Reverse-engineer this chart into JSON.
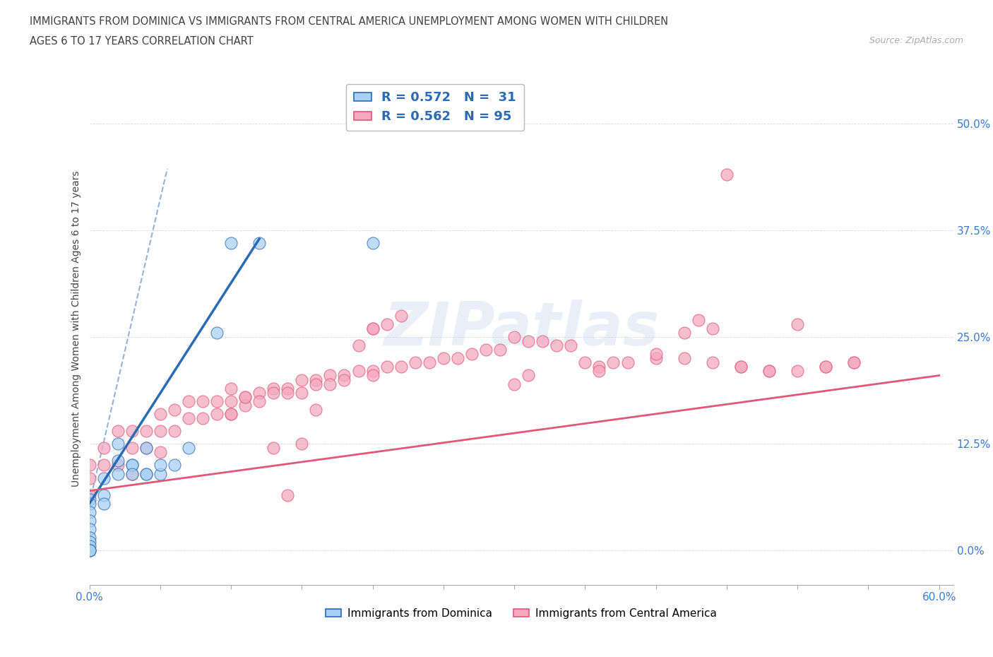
{
  "title_line1": "IMMIGRANTS FROM DOMINICA VS IMMIGRANTS FROM CENTRAL AMERICA UNEMPLOYMENT AMONG WOMEN WITH CHILDREN",
  "title_line2": "AGES 6 TO 17 YEARS CORRELATION CHART",
  "source": "Source: ZipAtlas.com",
  "ylabel": "Unemployment Among Women with Children Ages 6 to 17 years",
  "xlim": [
    0.0,
    0.61
  ],
  "ylim": [
    -0.04,
    0.56
  ],
  "xticks": [
    0.0,
    0.05,
    0.1,
    0.15,
    0.2,
    0.25,
    0.3,
    0.35,
    0.4,
    0.45,
    0.5,
    0.55,
    0.6
  ],
  "xtick_labels_show": [
    "0.0%",
    "",
    "",
    "",
    "",
    "",
    "",
    "",
    "",
    "",
    "",
    "",
    "60.0%"
  ],
  "ytick_positions": [
    0.0,
    0.125,
    0.25,
    0.375,
    0.5
  ],
  "ytick_labels": [
    "0.0%",
    "12.5%",
    "25.0%",
    "37.5%",
    "50.0%"
  ],
  "dominica_R": 0.572,
  "dominica_N": 31,
  "central_R": 0.562,
  "central_N": 95,
  "dominica_color": "#a8d0f5",
  "central_color": "#f5a8c0",
  "dominica_line_color": "#2a6bb5",
  "central_line_color": "#e05878",
  "tick_color": "#3a7ad5",
  "legend_text_color": "#2a6bb5",
  "title_color": "#404040",
  "source_color": "#aaaaaa",
  "grid_color": "#d8d8d8",
  "watermark_color": "#ccddf0",
  "dominica_label": "Immigrants from Dominica",
  "central_label": "Immigrants from Central America",
  "dominica_scatter_x": [
    0.0,
    0.0,
    0.0,
    0.0,
    0.0,
    0.0,
    0.0,
    0.0,
    0.0,
    0.0,
    0.0,
    0.01,
    0.01,
    0.01,
    0.02,
    0.02,
    0.02,
    0.03,
    0.03,
    0.03,
    0.04,
    0.04,
    0.04,
    0.05,
    0.05,
    0.06,
    0.07,
    0.09,
    0.1,
    0.12,
    0.2
  ],
  "dominica_scatter_y": [
    0.06,
    0.055,
    0.045,
    0.035,
    0.025,
    0.015,
    0.01,
    0.005,
    0.0,
    0.0,
    0.0,
    0.085,
    0.065,
    0.055,
    0.125,
    0.105,
    0.09,
    0.1,
    0.1,
    0.09,
    0.09,
    0.12,
    0.09,
    0.09,
    0.1,
    0.1,
    0.12,
    0.255,
    0.36,
    0.36,
    0.36
  ],
  "central_scatter_x": [
    0.0,
    0.0,
    0.0,
    0.01,
    0.01,
    0.02,
    0.02,
    0.03,
    0.03,
    0.03,
    0.04,
    0.04,
    0.05,
    0.05,
    0.05,
    0.06,
    0.06,
    0.07,
    0.07,
    0.08,
    0.08,
    0.09,
    0.09,
    0.1,
    0.1,
    0.11,
    0.11,
    0.12,
    0.12,
    0.13,
    0.13,
    0.14,
    0.14,
    0.15,
    0.15,
    0.16,
    0.16,
    0.17,
    0.17,
    0.18,
    0.18,
    0.19,
    0.2,
    0.2,
    0.21,
    0.22,
    0.23,
    0.24,
    0.25,
    0.26,
    0.27,
    0.28,
    0.29,
    0.3,
    0.31,
    0.32,
    0.33,
    0.34,
    0.35,
    0.36,
    0.37,
    0.38,
    0.4,
    0.42,
    0.44,
    0.46,
    0.48,
    0.5,
    0.52,
    0.54,
    0.42,
    0.44,
    0.46,
    0.48,
    0.5,
    0.52,
    0.54,
    0.43,
    0.2,
    0.21,
    0.3,
    0.31,
    0.19,
    0.2,
    0.36,
    0.4,
    0.1,
    0.1,
    0.11,
    0.13,
    0.14,
    0.15,
    0.16,
    0.22,
    0.45
  ],
  "central_scatter_y": [
    0.1,
    0.085,
    0.065,
    0.12,
    0.1,
    0.14,
    0.1,
    0.14,
    0.12,
    0.09,
    0.14,
    0.12,
    0.16,
    0.14,
    0.115,
    0.165,
    0.14,
    0.175,
    0.155,
    0.175,
    0.155,
    0.175,
    0.16,
    0.175,
    0.16,
    0.18,
    0.17,
    0.185,
    0.175,
    0.19,
    0.185,
    0.19,
    0.185,
    0.2,
    0.185,
    0.2,
    0.195,
    0.205,
    0.195,
    0.205,
    0.2,
    0.21,
    0.21,
    0.205,
    0.215,
    0.215,
    0.22,
    0.22,
    0.225,
    0.225,
    0.23,
    0.235,
    0.235,
    0.25,
    0.245,
    0.245,
    0.24,
    0.24,
    0.22,
    0.215,
    0.22,
    0.22,
    0.225,
    0.225,
    0.22,
    0.215,
    0.21,
    0.21,
    0.215,
    0.22,
    0.255,
    0.26,
    0.215,
    0.21,
    0.265,
    0.215,
    0.22,
    0.27,
    0.26,
    0.265,
    0.195,
    0.205,
    0.24,
    0.26,
    0.21,
    0.23,
    0.19,
    0.16,
    0.18,
    0.12,
    0.065,
    0.125,
    0.165,
    0.275,
    0.44
  ],
  "dominica_line_x": [
    0.0,
    0.12
  ],
  "dominica_line_y": [
    0.055,
    0.365
  ],
  "central_line_x": [
    0.0,
    0.6
  ],
  "central_line_y": [
    0.07,
    0.205
  ]
}
